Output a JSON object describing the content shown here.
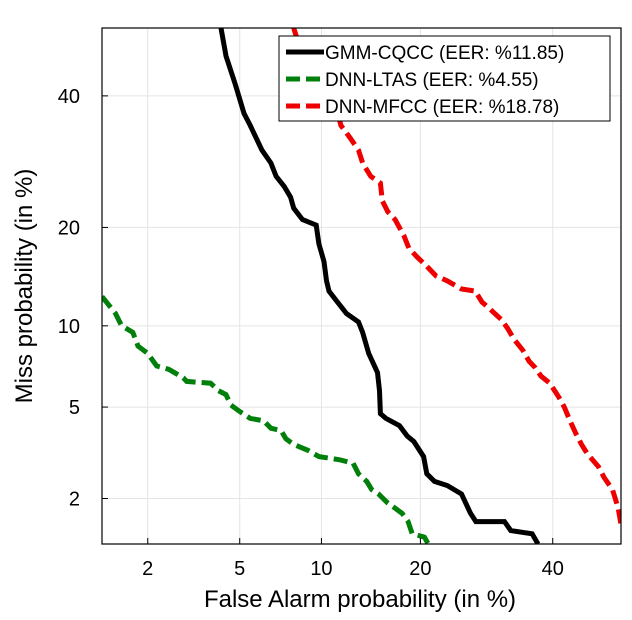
{
  "chart_data": {
    "type": "line",
    "title": "",
    "xlabel": "False Alarm probability (in %)",
    "ylabel": "Miss probability (in %)",
    "x_scale": "normal-deviate (probit)",
    "y_scale": "normal-deviate (probit)",
    "xlim": [
      1.2,
      52
    ],
    "ylim": [
      1.2,
      52
    ],
    "xticks": [
      2,
      5,
      10,
      20,
      40
    ],
    "yticks": [
      2,
      5,
      10,
      20,
      40
    ],
    "xtick_labels": [
      "2",
      "5",
      "10",
      "20",
      "40"
    ],
    "ytick_labels": [
      "2",
      "5",
      "10",
      "20",
      "40"
    ],
    "grid": true,
    "legend_position": "top-right",
    "series": [
      {
        "name": "GMM-CQCC (EER: %11.85)",
        "color": "#000000",
        "style": "solid",
        "points": [
          [
            4.2,
            52
          ],
          [
            4.4,
            47
          ],
          [
            4.8,
            42
          ],
          [
            5.2,
            37
          ],
          [
            5.5,
            35
          ],
          [
            6.1,
            31
          ],
          [
            6.6,
            29
          ],
          [
            6.9,
            27
          ],
          [
            7.4,
            25.5
          ],
          [
            7.8,
            24
          ],
          [
            8.0,
            22.5
          ],
          [
            8.6,
            21
          ],
          [
            9.6,
            20.3
          ],
          [
            9.8,
            18
          ],
          [
            10.2,
            16
          ],
          [
            10.4,
            14
          ],
          [
            10.6,
            13
          ],
          [
            11.3,
            12
          ],
          [
            12.1,
            11
          ],
          [
            13.2,
            10.3
          ],
          [
            13.6,
            9.5
          ],
          [
            14.2,
            8
          ],
          [
            15.1,
            6.8
          ],
          [
            15.3,
            5.8
          ],
          [
            15.4,
            4.7
          ],
          [
            16.0,
            4.5
          ],
          [
            17.5,
            4.2
          ],
          [
            18.4,
            3.8
          ],
          [
            19.2,
            3.6
          ],
          [
            20.4,
            3.1
          ],
          [
            20.8,
            2.6
          ],
          [
            21.8,
            2.4
          ],
          [
            23.5,
            2.3
          ],
          [
            25.5,
            2.1
          ],
          [
            26.8,
            1.7
          ],
          [
            27.6,
            1.55
          ],
          [
            32,
            1.55
          ],
          [
            33,
            1.4
          ],
          [
            36.5,
            1.35
          ],
          [
            37.5,
            1.2
          ]
        ]
      },
      {
        "name": "DNN-LTAS (EER: %4.55)",
        "color": "#00800a",
        "style": "dashed",
        "points": [
          [
            1.2,
            12.5
          ],
          [
            1.4,
            11
          ],
          [
            1.5,
            10
          ],
          [
            1.7,
            9.5
          ],
          [
            1.8,
            8.5
          ],
          [
            2.0,
            8.0
          ],
          [
            2.2,
            7.2
          ],
          [
            2.5,
            7.0
          ],
          [
            2.9,
            6.5
          ],
          [
            3.0,
            6.3
          ],
          [
            3.8,
            6.2
          ],
          [
            4.1,
            5.8
          ],
          [
            4.4,
            5.6
          ],
          [
            4.6,
            5.1
          ],
          [
            5.0,
            4.8
          ],
          [
            5.5,
            4.5
          ],
          [
            6.2,
            4.4
          ],
          [
            6.6,
            4.1
          ],
          [
            7.2,
            4.0
          ],
          [
            7.5,
            3.7
          ],
          [
            8.0,
            3.5
          ],
          [
            9.0,
            3.3
          ],
          [
            9.8,
            3.1
          ],
          [
            11.5,
            3.0
          ],
          [
            12.7,
            2.9
          ],
          [
            13.2,
            2.6
          ],
          [
            14.0,
            2.4
          ],
          [
            14.5,
            2.2
          ],
          [
            15.2,
            2.1
          ],
          [
            16.2,
            1.9
          ],
          [
            17.0,
            1.8
          ],
          [
            17.8,
            1.7
          ],
          [
            18.5,
            1.55
          ],
          [
            19.0,
            1.35
          ],
          [
            20.5,
            1.3
          ],
          [
            21.0,
            1.2
          ]
        ]
      },
      {
        "name": "DNN-MFCC (EER: %18.78)",
        "color": "#ee0000",
        "style": "dashed",
        "points": [
          [
            8.0,
            52
          ],
          [
            8.6,
            47
          ],
          [
            9.6,
            43
          ],
          [
            10.6,
            41
          ],
          [
            11.2,
            38
          ],
          [
            11.6,
            35
          ],
          [
            12.4,
            33
          ],
          [
            13.2,
            31
          ],
          [
            13.6,
            29
          ],
          [
            14.4,
            27
          ],
          [
            15.4,
            26
          ],
          [
            15.6,
            23.5
          ],
          [
            16.2,
            22
          ],
          [
            17.0,
            21
          ],
          [
            18.0,
            19
          ],
          [
            18.6,
            17.5
          ],
          [
            19.6,
            16.5
          ],
          [
            20.8,
            15.5
          ],
          [
            22.0,
            14.5
          ],
          [
            23.5,
            14
          ],
          [
            25.5,
            13.2
          ],
          [
            27.5,
            13
          ],
          [
            28.5,
            12
          ],
          [
            29.5,
            11.5
          ],
          [
            31.5,
            10.5
          ],
          [
            32.5,
            9.8
          ],
          [
            33.5,
            9.0
          ],
          [
            35.0,
            8.2
          ],
          [
            36.0,
            7.5
          ],
          [
            37.0,
            7.1
          ],
          [
            38.0,
            6.6
          ],
          [
            39.5,
            6.2
          ],
          [
            41.0,
            5.5
          ],
          [
            42.0,
            5.0
          ],
          [
            43.0,
            4.4
          ],
          [
            44.0,
            3.9
          ],
          [
            45.0,
            3.5
          ],
          [
            46.0,
            3.2
          ],
          [
            48.0,
            2.8
          ],
          [
            49.0,
            2.5
          ],
          [
            50.5,
            2.2
          ],
          [
            51.5,
            1.8
          ],
          [
            52,
            1.5
          ]
        ]
      }
    ]
  }
}
